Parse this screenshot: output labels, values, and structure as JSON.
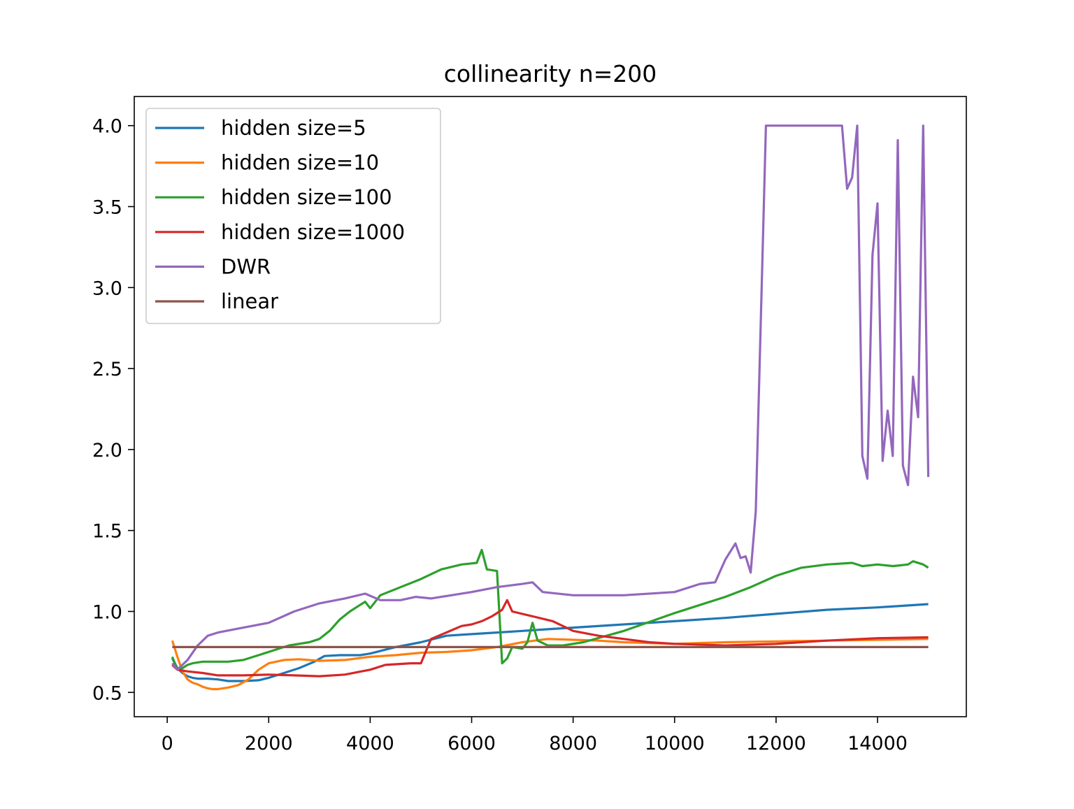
{
  "chart_data": {
    "type": "line",
    "title": "collinearity n=200",
    "xlabel": "",
    "ylabel": "",
    "xlim": [
      -650,
      15750
    ],
    "ylim": [
      0.35,
      4.18
    ],
    "xticks": [
      0,
      2000,
      4000,
      6000,
      8000,
      10000,
      12000,
      14000
    ],
    "yticks": [
      0.5,
      1.0,
      1.5,
      2.0,
      2.5,
      3.0,
      3.5,
      4.0
    ],
    "xtick_labels": [
      "0",
      "2000",
      "4000",
      "6000",
      "8000",
      "10000",
      "12000",
      "14000"
    ],
    "ytick_labels": [
      "0.5",
      "1.0",
      "1.5",
      "2.0",
      "2.5",
      "3.0",
      "3.5",
      "4.0"
    ],
    "grid": false,
    "legend_position": "upper-left",
    "series": [
      {
        "name": "hidden size=5",
        "color": "#1f77b4",
        "points": [
          [
            100,
            0.71
          ],
          [
            200,
            0.65
          ],
          [
            300,
            0.62
          ],
          [
            400,
            0.6
          ],
          [
            500,
            0.59
          ],
          [
            600,
            0.585
          ],
          [
            800,
            0.585
          ],
          [
            1000,
            0.58
          ],
          [
            1200,
            0.57
          ],
          [
            1500,
            0.57
          ],
          [
            1800,
            0.575
          ],
          [
            2000,
            0.59
          ],
          [
            2300,
            0.62
          ],
          [
            2600,
            0.65
          ],
          [
            2900,
            0.69
          ],
          [
            3100,
            0.725
          ],
          [
            3400,
            0.73
          ],
          [
            3800,
            0.73
          ],
          [
            4000,
            0.74
          ],
          [
            4500,
            0.78
          ],
          [
            5000,
            0.81
          ],
          [
            5500,
            0.85
          ],
          [
            6000,
            0.86
          ],
          [
            6500,
            0.87
          ],
          [
            7000,
            0.88
          ],
          [
            7500,
            0.89
          ],
          [
            8000,
            0.9
          ],
          [
            9000,
            0.92
          ],
          [
            10000,
            0.94
          ],
          [
            11000,
            0.96
          ],
          [
            12000,
            0.985
          ],
          [
            13000,
            1.01
          ],
          [
            14000,
            1.025
          ],
          [
            15000,
            1.045
          ]
        ]
      },
      {
        "name": "hidden size=10",
        "color": "#ff7f0e",
        "points": [
          [
            100,
            0.82
          ],
          [
            200,
            0.72
          ],
          [
            300,
            0.63
          ],
          [
            400,
            0.58
          ],
          [
            500,
            0.56
          ],
          [
            600,
            0.55
          ],
          [
            700,
            0.535
          ],
          [
            800,
            0.525
          ],
          [
            900,
            0.52
          ],
          [
            1000,
            0.52
          ],
          [
            1200,
            0.53
          ],
          [
            1400,
            0.545
          ],
          [
            1600,
            0.58
          ],
          [
            1800,
            0.64
          ],
          [
            2000,
            0.68
          ],
          [
            2300,
            0.7
          ],
          [
            2600,
            0.705
          ],
          [
            3000,
            0.695
          ],
          [
            3500,
            0.7
          ],
          [
            4000,
            0.72
          ],
          [
            4500,
            0.73
          ],
          [
            5000,
            0.745
          ],
          [
            5500,
            0.75
          ],
          [
            6000,
            0.76
          ],
          [
            6500,
            0.78
          ],
          [
            7000,
            0.81
          ],
          [
            7500,
            0.83
          ],
          [
            8000,
            0.825
          ],
          [
            8500,
            0.82
          ],
          [
            9000,
            0.81
          ],
          [
            9500,
            0.805
          ],
          [
            10000,
            0.8
          ],
          [
            11000,
            0.81
          ],
          [
            12000,
            0.815
          ],
          [
            13000,
            0.82
          ],
          [
            14000,
            0.825
          ],
          [
            15000,
            0.83
          ]
        ]
      },
      {
        "name": "hidden size=100",
        "color": "#2ca02c",
        "points": [
          [
            100,
            0.72
          ],
          [
            200,
            0.64
          ],
          [
            300,
            0.65
          ],
          [
            400,
            0.67
          ],
          [
            500,
            0.68
          ],
          [
            700,
            0.69
          ],
          [
            900,
            0.69
          ],
          [
            1200,
            0.69
          ],
          [
            1500,
            0.7
          ],
          [
            1800,
            0.73
          ],
          [
            2100,
            0.76
          ],
          [
            2400,
            0.79
          ],
          [
            2800,
            0.81
          ],
          [
            3000,
            0.83
          ],
          [
            3200,
            0.88
          ],
          [
            3400,
            0.95
          ],
          [
            3600,
            1.0
          ],
          [
            3800,
            1.04
          ],
          [
            3900,
            1.06
          ],
          [
            4000,
            1.02
          ],
          [
            4200,
            1.1
          ],
          [
            4600,
            1.15
          ],
          [
            5000,
            1.2
          ],
          [
            5400,
            1.26
          ],
          [
            5800,
            1.29
          ],
          [
            6100,
            1.3
          ],
          [
            6200,
            1.38
          ],
          [
            6300,
            1.26
          ],
          [
            6500,
            1.25
          ],
          [
            6600,
            0.68
          ],
          [
            6700,
            0.71
          ],
          [
            6800,
            0.78
          ],
          [
            7000,
            0.77
          ],
          [
            7100,
            0.81
          ],
          [
            7200,
            0.93
          ],
          [
            7300,
            0.82
          ],
          [
            7500,
            0.79
          ],
          [
            7800,
            0.79
          ],
          [
            8200,
            0.81
          ],
          [
            9000,
            0.88
          ],
          [
            10000,
            0.99
          ],
          [
            11000,
            1.09
          ],
          [
            11500,
            1.15
          ],
          [
            12000,
            1.22
          ],
          [
            12500,
            1.27
          ],
          [
            13000,
            1.29
          ],
          [
            13500,
            1.3
          ],
          [
            13700,
            1.28
          ],
          [
            14000,
            1.29
          ],
          [
            14300,
            1.28
          ],
          [
            14600,
            1.29
          ],
          [
            14700,
            1.31
          ],
          [
            14900,
            1.29
          ],
          [
            15000,
            1.27
          ]
        ]
      },
      {
        "name": "hidden size=1000",
        "color": "#d62728",
        "points": [
          [
            100,
            0.67
          ],
          [
            200,
            0.64
          ],
          [
            400,
            0.63
          ],
          [
            700,
            0.62
          ],
          [
            1000,
            0.605
          ],
          [
            1500,
            0.605
          ],
          [
            2000,
            0.61
          ],
          [
            2500,
            0.605
          ],
          [
            3000,
            0.6
          ],
          [
            3500,
            0.61
          ],
          [
            4000,
            0.64
          ],
          [
            4300,
            0.67
          ],
          [
            4800,
            0.68
          ],
          [
            5000,
            0.68
          ],
          [
            5200,
            0.83
          ],
          [
            5500,
            0.87
          ],
          [
            5800,
            0.91
          ],
          [
            6000,
            0.92
          ],
          [
            6200,
            0.94
          ],
          [
            6400,
            0.97
          ],
          [
            6600,
            1.01
          ],
          [
            6700,
            1.07
          ],
          [
            6800,
            1.0
          ],
          [
            7200,
            0.97
          ],
          [
            7600,
            0.94
          ],
          [
            8000,
            0.88
          ],
          [
            8500,
            0.85
          ],
          [
            9000,
            0.83
          ],
          [
            9500,
            0.81
          ],
          [
            10000,
            0.8
          ],
          [
            11000,
            0.79
          ],
          [
            12000,
            0.8
          ],
          [
            13000,
            0.82
          ],
          [
            14000,
            0.835
          ],
          [
            15000,
            0.84
          ]
        ]
      },
      {
        "name": "DWR",
        "color": "#9467bd",
        "points": [
          [
            100,
            0.68
          ],
          [
            200,
            0.64
          ],
          [
            400,
            0.7
          ],
          [
            600,
            0.79
          ],
          [
            800,
            0.85
          ],
          [
            1000,
            0.87
          ],
          [
            1500,
            0.9
          ],
          [
            2000,
            0.93
          ],
          [
            2500,
            1.0
          ],
          [
            3000,
            1.05
          ],
          [
            3500,
            1.08
          ],
          [
            3900,
            1.11
          ],
          [
            4200,
            1.07
          ],
          [
            4600,
            1.07
          ],
          [
            4900,
            1.09
          ],
          [
            5200,
            1.08
          ],
          [
            5600,
            1.1
          ],
          [
            6000,
            1.12
          ],
          [
            6500,
            1.15
          ],
          [
            7000,
            1.17
          ],
          [
            7200,
            1.18
          ],
          [
            7400,
            1.12
          ],
          [
            8000,
            1.1
          ],
          [
            9000,
            1.1
          ],
          [
            10000,
            1.12
          ],
          [
            10500,
            1.17
          ],
          [
            10800,
            1.18
          ],
          [
            11000,
            1.32
          ],
          [
            11200,
            1.42
          ],
          [
            11300,
            1.33
          ],
          [
            11400,
            1.34
          ],
          [
            11500,
            1.24
          ],
          [
            11600,
            1.62
          ],
          [
            11700,
            2.8
          ],
          [
            11800,
            4.0
          ],
          [
            13300,
            4.0
          ],
          [
            13400,
            3.61
          ],
          [
            13500,
            3.68
          ],
          [
            13600,
            4.0
          ],
          [
            13700,
            1.96
          ],
          [
            13800,
            1.82
          ],
          [
            13900,
            3.2
          ],
          [
            14000,
            3.52
          ],
          [
            14100,
            1.93
          ],
          [
            14200,
            2.24
          ],
          [
            14300,
            1.96
          ],
          [
            14400,
            3.91
          ],
          [
            14500,
            1.9
          ],
          [
            14600,
            1.78
          ],
          [
            14700,
            2.45
          ],
          [
            14800,
            2.2
          ],
          [
            14900,
            4.0
          ],
          [
            15000,
            1.83
          ]
        ]
      },
      {
        "name": "linear",
        "color": "#8c564b",
        "points": [
          [
            100,
            0.78
          ],
          [
            15000,
            0.78
          ]
        ]
      }
    ]
  }
}
